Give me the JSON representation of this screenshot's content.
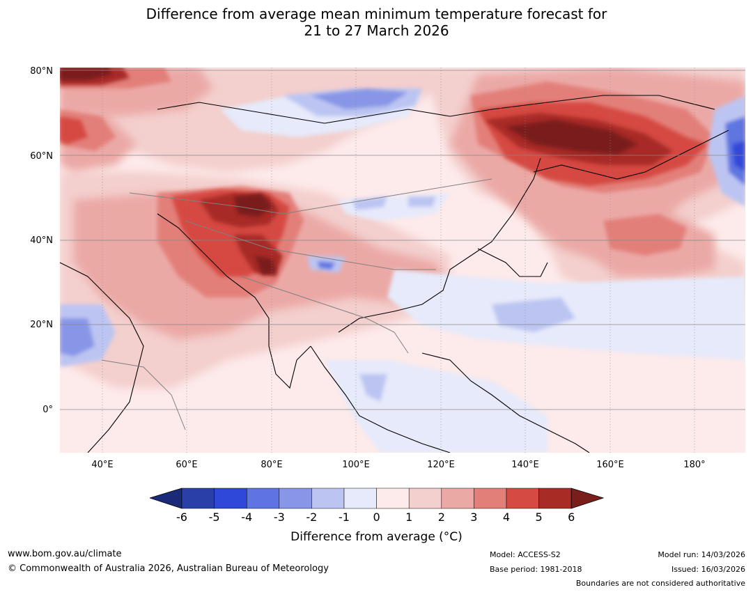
{
  "title": {
    "line1": "Difference from average mean minimum temperature forecast for",
    "line2": "21 to 27 March 2026"
  },
  "map": {
    "lat_labels": [
      "80°N",
      "60°N",
      "40°N",
      "20°N",
      "0°"
    ],
    "lon_labels": [
      "40°E",
      "60°E",
      "80°E",
      "100°E",
      "120°E",
      "140°E",
      "160°E",
      "180°"
    ]
  },
  "colorbar": {
    "ticks": [
      "-6",
      "-5",
      "-4",
      "-3",
      "-2",
      "-1",
      "0",
      "1",
      "2",
      "3",
      "4",
      "5",
      "6"
    ],
    "colors": [
      "#2a3fa8",
      "#3048d8",
      "#5f74e0",
      "#8796e6",
      "#bcc5f2",
      "#e6eafa",
      "#fdeaea",
      "#f3cfcd",
      "#eba9a6",
      "#e37f79",
      "#d54a42",
      "#a82b26"
    ],
    "under_color": "#1a2a78",
    "over_color": "#7a1e1b",
    "label": "Difference from average (°C)"
  },
  "footer": {
    "website": "www.bom.gov.au/climate",
    "copyright": "© Commonwealth of Australia 2026, Australian Bureau of Meteorology",
    "model": "Model: ACCESS-S2",
    "base_period": "Base period: 1981-2018",
    "model_run": "Model run: 14/03/2026",
    "issued": "Issued: 16/03/2026",
    "disclaimer": "Boundaries are not considered authoritative"
  }
}
